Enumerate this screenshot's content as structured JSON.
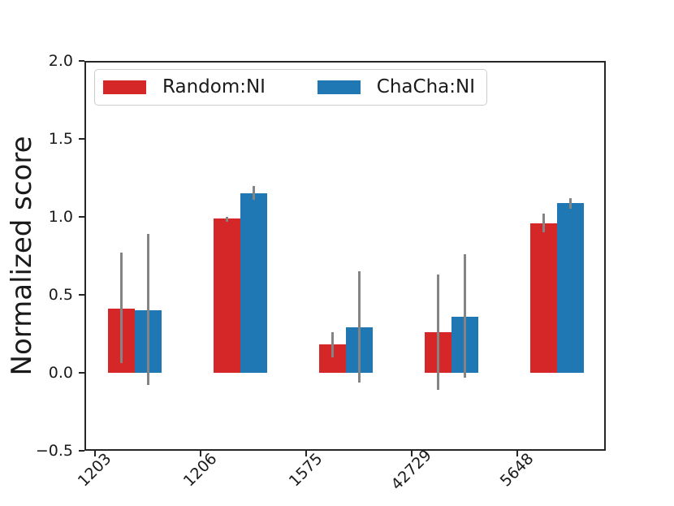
{
  "chart_data": {
    "type": "bar",
    "title": "",
    "xlabel": "",
    "ylabel": "Normalized score",
    "categories": [
      "1203",
      "1206",
      "1575",
      "42729",
      "5648"
    ],
    "series": [
      {
        "name": "Random:NI",
        "color": "#d62728",
        "values": [
          0.41,
          0.99,
          0.18,
          0.26,
          0.96
        ],
        "error_ranges": [
          [
            0.06,
            0.77
          ],
          [
            0.97,
            1.0
          ],
          [
            0.1,
            0.26
          ],
          [
            -0.11,
            0.63
          ],
          [
            0.9,
            1.02
          ]
        ]
      },
      {
        "name": "ChaCha:NI",
        "color": "#1f77b4",
        "values": [
          0.4,
          1.15,
          0.29,
          0.36,
          1.09
        ],
        "error_ranges": [
          [
            -0.08,
            0.89
          ],
          [
            1.11,
            1.2
          ],
          [
            -0.06,
            0.65
          ],
          [
            -0.03,
            0.76
          ],
          [
            1.05,
            1.12
          ]
        ]
      }
    ],
    "ylim": [
      -0.5,
      2.0
    ],
    "yticks": [
      -0.5,
      0.0,
      0.5,
      1.0,
      1.5,
      2.0
    ],
    "error_bar_color": "#848484",
    "grid": false,
    "legend_position": "upper left",
    "x_tick_rotation_deg": 45
  }
}
